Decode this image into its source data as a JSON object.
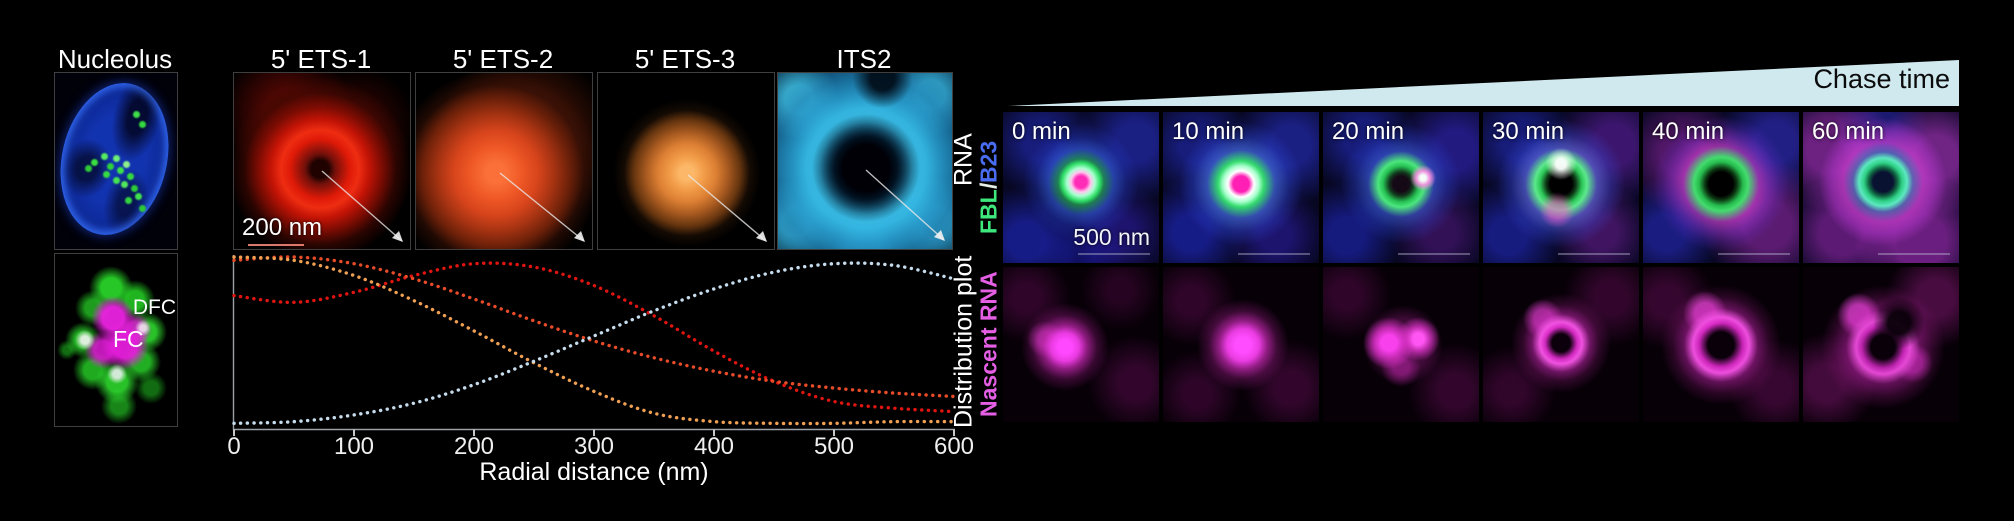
{
  "figure": {
    "left_panel": {
      "column_labels": [
        "Nucleolus",
        "5' ETS-1",
        "5' ETS-2",
        "5' ETS-3",
        "ITS2"
      ],
      "row_label_top": "RNA",
      "row_label_bottom": "Distribution plot",
      "scale_bar_label": "200 nm",
      "fc_label": "FC",
      "dfc_label": "DFC"
    },
    "chase_panel": {
      "header": "Chase time",
      "time_labels": [
        "0 min",
        "10 min",
        "20 min",
        "30 min",
        "40 min",
        "60 min"
      ],
      "scale_bar_label": "500 nm",
      "row1_label_parts": {
        "fbl": "FBL",
        "sep": " / ",
        "b23": "B23"
      },
      "row2_label": "Nascent RNA",
      "colors": {
        "fbl_green": "#3ee87c",
        "b23_blue": "#4a6cf0",
        "nascent_magenta": "#e55fe5",
        "wedge": "#cfe9ef"
      }
    }
  },
  "chart_data": {
    "type": "line",
    "style": "dotted",
    "title": "",
    "xlabel": "Radial distance (nm)",
    "ylabel": "Distribution plot",
    "xlim": [
      0,
      600
    ],
    "ylim": [
      0,
      1
    ],
    "grid": false,
    "legend": "none",
    "xticks": [
      0,
      100,
      200,
      300,
      400,
      500,
      600
    ],
    "x": [
      0,
      50,
      100,
      150,
      200,
      250,
      300,
      350,
      400,
      450,
      500,
      550,
      600
    ],
    "series": [
      {
        "name": "5' ETS-1",
        "color": "#e01510",
        "values": [
          0.77,
          0.73,
          0.79,
          0.89,
          0.96,
          0.94,
          0.83,
          0.65,
          0.44,
          0.26,
          0.14,
          0.1,
          0.08
        ]
      },
      {
        "name": "5' ETS-2",
        "color": "#e84b28",
        "values": [
          0.98,
          1.0,
          0.96,
          0.87,
          0.75,
          0.62,
          0.5,
          0.4,
          0.32,
          0.26,
          0.22,
          0.19,
          0.17
        ]
      },
      {
        "name": "5' ETS-3",
        "color": "#f0a052",
        "values": [
          1.0,
          0.98,
          0.89,
          0.74,
          0.56,
          0.37,
          0.2,
          0.07,
          0.02,
          0.01,
          0.01,
          0.02,
          0.02
        ]
      },
      {
        "name": "ITS2",
        "color": "#c6dcec",
        "values": [
          0.01,
          0.02,
          0.06,
          0.13,
          0.24,
          0.38,
          0.53,
          0.68,
          0.81,
          0.91,
          0.96,
          0.95,
          0.87
        ]
      }
    ]
  }
}
